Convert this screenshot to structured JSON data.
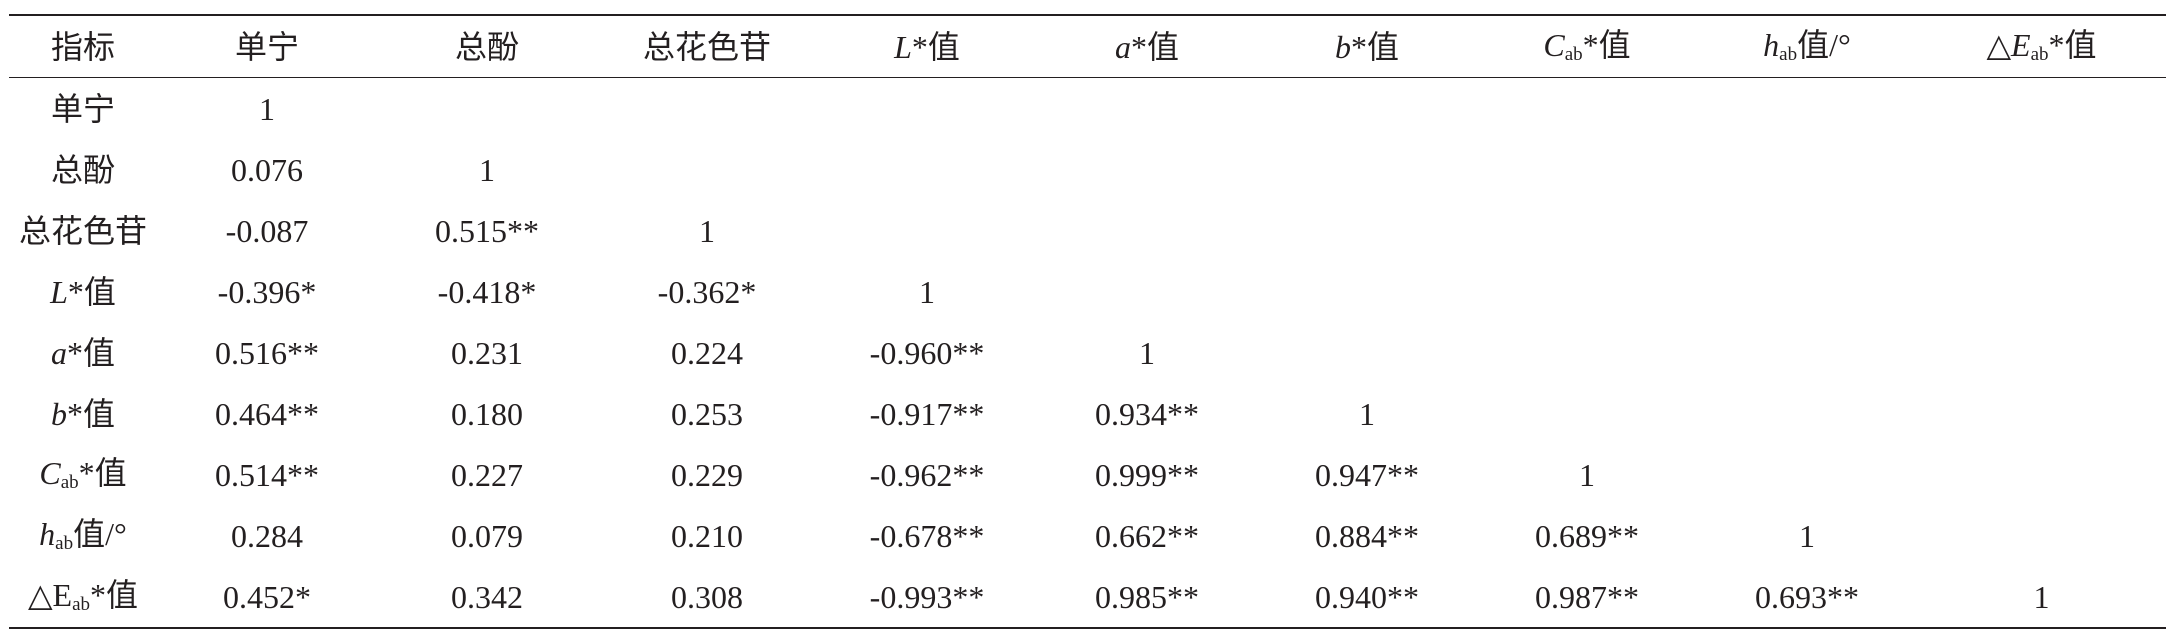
{
  "table": {
    "header": [
      {
        "text": "指标"
      },
      {
        "text": "单宁"
      },
      {
        "text": "总酚"
      },
      {
        "text": "总花色苷"
      },
      {
        "it": "L",
        "text": "*值"
      },
      {
        "it": "a",
        "text": "*值"
      },
      {
        "it": "b",
        "text": "*值"
      },
      {
        "it": "C",
        "sub": "ab",
        "text": "*值"
      },
      {
        "it": "h",
        "sub": "ab",
        "text": "值/°"
      },
      {
        "pre": "△",
        "it": "E",
        "sub": "ab",
        "text": "*值"
      }
    ],
    "rows": [
      {
        "label": {
          "text": "单宁"
        },
        "cells": [
          "1",
          "",
          "",
          "",
          "",
          "",
          "",
          "",
          ""
        ]
      },
      {
        "label": {
          "text": "总酚"
        },
        "cells": [
          "0.076",
          "1",
          "",
          "",
          "",
          "",
          "",
          "",
          ""
        ]
      },
      {
        "label": {
          "text": "总花色苷"
        },
        "cells": [
          "-0.087",
          "0.515**",
          "1",
          "",
          "",
          "",
          "",
          "",
          ""
        ]
      },
      {
        "label": {
          "it": "L",
          "text": "*值"
        },
        "cells": [
          "-0.396*",
          "-0.418*",
          "-0.362*",
          "1",
          "",
          "",
          "",
          "",
          ""
        ]
      },
      {
        "label": {
          "it": "a",
          "text": "*值"
        },
        "cells": [
          "0.516**",
          "0.231",
          "0.224",
          "-0.960**",
          "1",
          "",
          "",
          "",
          ""
        ]
      },
      {
        "label": {
          "it": "b",
          "text": "*值"
        },
        "cells": [
          "0.464**",
          "0.180",
          "0.253",
          "-0.917**",
          "0.934**",
          "1",
          "",
          "",
          ""
        ]
      },
      {
        "label": {
          "it": "C",
          "sub": "ab",
          "text": "*值"
        },
        "cells": [
          "0.514**",
          "0.227",
          "0.229",
          "-0.962**",
          "0.999**",
          "0.947**",
          "1",
          "",
          ""
        ]
      },
      {
        "label": {
          "it": "h",
          "sub": "ab",
          "text": "值/°"
        },
        "cells": [
          "0.284",
          "0.079",
          "0.210",
          "-0.678**",
          "0.662**",
          "0.884**",
          "0.689**",
          "1",
          ""
        ]
      },
      {
        "label": {
          "pre": "△E",
          "sub": "ab",
          "text": "*值"
        },
        "cells": [
          "0.452*",
          "0.342",
          "0.308",
          "-0.993**",
          "0.985**",
          "0.940**",
          "0.987**",
          "0.693**",
          "1"
        ]
      }
    ]
  }
}
